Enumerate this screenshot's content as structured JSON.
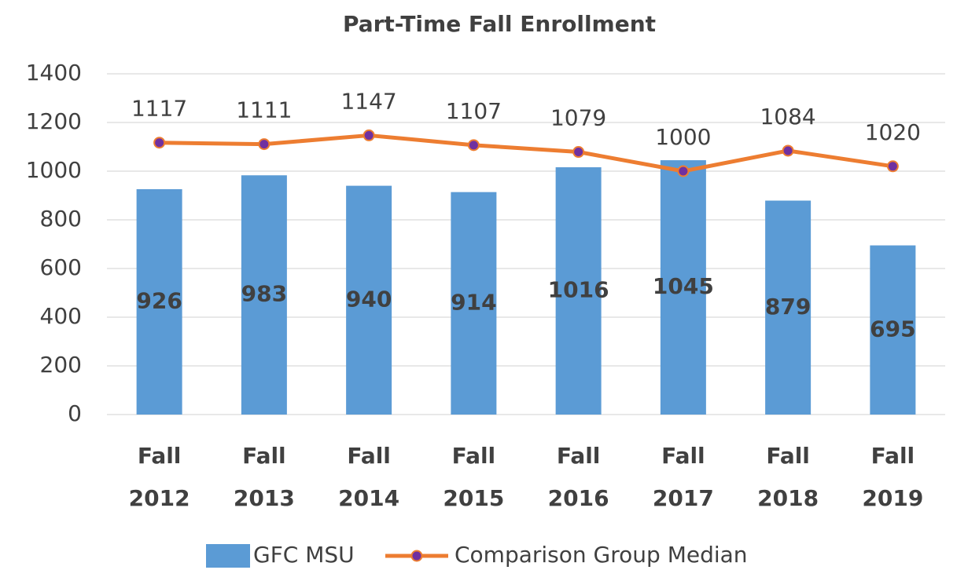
{
  "chart_data": {
    "type": "bar",
    "title": "Part-Time Fall Enrollment",
    "categories": [
      "Fall 2012",
      "Fall 2013",
      "Fall 2014",
      "Fall 2015",
      "Fall 2016",
      "Fall 2017",
      "Fall 2018",
      "Fall 2019"
    ],
    "series": [
      {
        "name": "GFC MSU",
        "type": "bar",
        "color": "#5b9bd5",
        "values": [
          926,
          983,
          940,
          914,
          1016,
          1045,
          879,
          695
        ]
      },
      {
        "name": "Comparison Group Median",
        "type": "line",
        "color": "#ed7d31",
        "marker_color": "#7030a0",
        "values": [
          1117,
          1111,
          1147,
          1107,
          1079,
          1000,
          1084,
          1020
        ]
      }
    ],
    "ylim": [
      0,
      1400
    ],
    "yticks": [
      0,
      200,
      400,
      600,
      800,
      1000,
      1200,
      1400
    ],
    "grid": true,
    "legend": "bottom"
  }
}
